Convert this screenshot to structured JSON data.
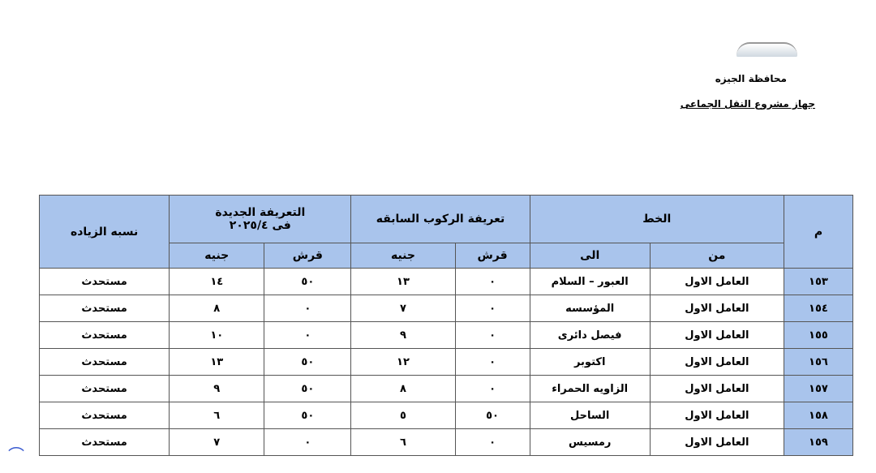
{
  "header": {
    "governorate": "محافظة الجيزه",
    "agency": "جهاز مشروع النقل الجماعى"
  },
  "table": {
    "headers": {
      "no": "م",
      "line": "الخط",
      "from": "من",
      "to": "الى",
      "previous_fare": "تعريفة الركوب السابقه",
      "new_fare_line1": "التعريفة الجديدة",
      "new_fare_line2": "فى ٢٠٢٥/٤",
      "piaster": "قرش",
      "pound": "جنيه",
      "increase": "نسبه الزياده"
    },
    "rows": [
      {
        "no": "١٥٣",
        "from": "العامل الاول",
        "to": "العبور – السلام",
        "prev_piaster": "٠",
        "prev_pound": "١٣",
        "new_piaster": "٥٠",
        "new_pound": "١٤",
        "increase": "مستحدث"
      },
      {
        "no": "١٥٤",
        "from": "العامل الاول",
        "to": "المؤسسه",
        "prev_piaster": "٠",
        "prev_pound": "٧",
        "new_piaster": "٠",
        "new_pound": "٨",
        "increase": "مستحدث"
      },
      {
        "no": "١٥٥",
        "from": "العامل الاول",
        "to": "فيصل دائرى",
        "prev_piaster": "٠",
        "prev_pound": "٩",
        "new_piaster": "٠",
        "new_pound": "١٠",
        "increase": "مستحدث"
      },
      {
        "no": "١٥٦",
        "from": "العامل الاول",
        "to": "اكتوبر",
        "prev_piaster": "٠",
        "prev_pound": "١٢",
        "new_piaster": "٥٠",
        "new_pound": "١٣",
        "increase": "مستحدث"
      },
      {
        "no": "١٥٧",
        "from": "العامل الاول",
        "to": "الزاويه الحمراء",
        "prev_piaster": "٠",
        "prev_pound": "٨",
        "new_piaster": "٥٠",
        "new_pound": "٩",
        "increase": "مستحدث"
      },
      {
        "no": "١٥٨",
        "from": "العامل الاول",
        "to": "الساحل",
        "prev_piaster": "٥٠",
        "prev_pound": "٥",
        "new_piaster": "٥٠",
        "new_pound": "٦",
        "increase": "مستحدث"
      },
      {
        "no": "١٥٩",
        "from": "العامل الاول",
        "to": "رمسيس",
        "prev_piaster": "٠",
        "prev_pound": "٦",
        "new_piaster": "٠",
        "new_pound": "٧",
        "increase": "مستحدث"
      }
    ]
  },
  "colors": {
    "header_bg": "#a9c4ec"
  }
}
